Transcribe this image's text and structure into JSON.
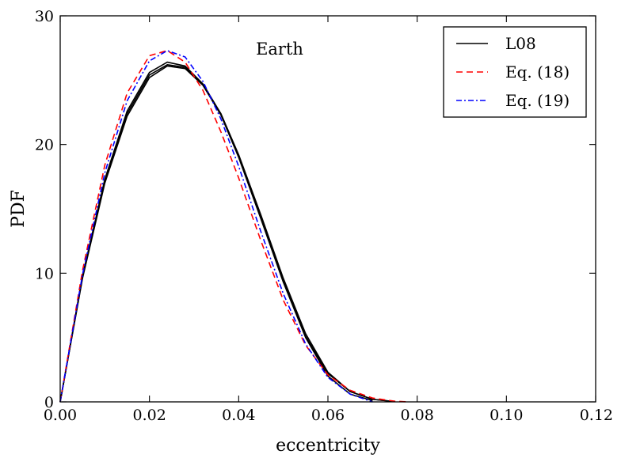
{
  "chart_data": {
    "type": "line",
    "title": "",
    "annotation": "Earth",
    "xlabel": "eccentricity",
    "ylabel": "PDF",
    "xlim": [
      0,
      0.12
    ],
    "ylim": [
      0,
      30
    ],
    "x_ticks": [
      0,
      0.02,
      0.04,
      0.06,
      0.08,
      0.1,
      0.12
    ],
    "x_tick_labels": [
      "0.00",
      "0.02",
      "0.04",
      "0.06",
      "0.08",
      "0.10",
      "0.12"
    ],
    "y_ticks": [
      0,
      10,
      20,
      30
    ],
    "y_tick_labels": [
      "0",
      "10",
      "20",
      "30"
    ],
    "grid": false,
    "legend_position": "top-right",
    "legend": [
      {
        "label": "L08",
        "color": "#000000",
        "style": "solid"
      },
      {
        "label": "Eq. (18)",
        "color": "#ff0000",
        "style": "dashed"
      },
      {
        "label": "Eq. (19)",
        "color": "#0000ff",
        "style": "dashdot"
      }
    ],
    "series": [
      {
        "group": "L08",
        "color": "#000000",
        "style": "solid",
        "x": [
          0,
          0.005,
          0.01,
          0.015,
          0.02,
          0.024,
          0.028,
          0.032,
          0.036,
          0.04,
          0.045,
          0.05,
          0.055,
          0.06,
          0.065,
          0.07,
          0.075
        ],
        "y": [
          0,
          9.6,
          17.0,
          22.2,
          25.2,
          26.1,
          25.9,
          24.6,
          22.4,
          19.2,
          14.5,
          9.6,
          5.3,
          2.3,
          0.8,
          0.2,
          0.02
        ]
      },
      {
        "group": "L08",
        "color": "#000000",
        "style": "solid",
        "x": [
          0,
          0.005,
          0.01,
          0.015,
          0.02,
          0.024,
          0.028,
          0.032,
          0.036,
          0.04,
          0.045,
          0.05,
          0.055,
          0.06,
          0.065,
          0.07,
          0.075
        ],
        "y": [
          0,
          9.8,
          17.3,
          22.6,
          25.6,
          26.4,
          26.1,
          24.7,
          22.4,
          19.1,
          14.3,
          9.4,
          5.1,
          2.2,
          0.8,
          0.2,
          0.02
        ]
      },
      {
        "group": "L08",
        "color": "#000000",
        "style": "solid",
        "x": [
          0,
          0.005,
          0.01,
          0.015,
          0.02,
          0.024,
          0.028,
          0.032,
          0.036,
          0.04,
          0.045,
          0.05,
          0.055,
          0.06,
          0.065,
          0.07
        ],
        "y": [
          0,
          9.7,
          17.2,
          22.4,
          25.4,
          26.2,
          26.0,
          24.6,
          22.3,
          19.0,
          14.2,
          9.3,
          5.0,
          2.0,
          0.6,
          0.1
        ]
      },
      {
        "group": "Eq. (18)",
        "color": "#ff0000",
        "style": "dashed",
        "x": [
          0,
          0.005,
          0.01,
          0.015,
          0.02,
          0.024,
          0.028,
          0.032,
          0.036,
          0.04,
          0.045,
          0.05,
          0.055,
          0.06,
          0.065,
          0.07,
          0.075,
          0.078
        ],
        "y": [
          0,
          10.2,
          18.4,
          24.0,
          26.9,
          27.3,
          26.4,
          24.2,
          21.0,
          17.4,
          12.5,
          7.9,
          4.4,
          2.1,
          0.9,
          0.3,
          0.05,
          0
        ]
      },
      {
        "group": "Eq. (19)",
        "color": "#0000ff",
        "style": "dashdot",
        "x": [
          0,
          0.005,
          0.01,
          0.015,
          0.02,
          0.024,
          0.028,
          0.032,
          0.036,
          0.04,
          0.045,
          0.05,
          0.055,
          0.06,
          0.065,
          0.07
        ],
        "y": [
          0,
          9.9,
          17.8,
          23.4,
          26.5,
          27.3,
          26.8,
          24.9,
          22.0,
          18.3,
          13.2,
          8.4,
          4.5,
          1.9,
          0.6,
          0
        ]
      }
    ]
  }
}
